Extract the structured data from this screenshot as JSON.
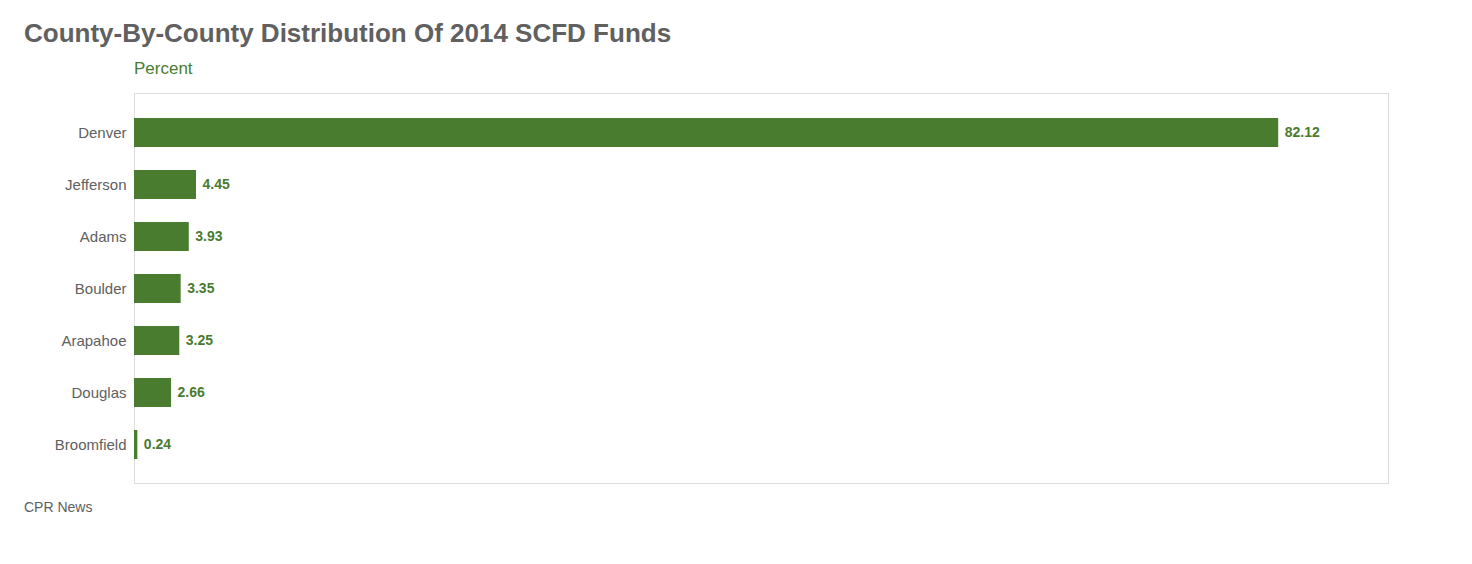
{
  "chart_data": {
    "type": "bar",
    "orientation": "horizontal",
    "title": "County-By-County Distribution Of 2014 SCFD Funds",
    "xlabel": "Percent",
    "caption": "CPR News",
    "categories": [
      "Denver",
      "Jefferson",
      "Adams",
      "Boulder",
      "Arapahoe",
      "Douglas",
      "Broomfield"
    ],
    "values": [
      82.12,
      4.45,
      3.93,
      3.35,
      3.25,
      2.66,
      0.24
    ],
    "color": "#4a7c2f",
    "xlim": [
      0,
      90
    ],
    "data_labels": true,
    "tick_labels": "y",
    "grid": false
  }
}
